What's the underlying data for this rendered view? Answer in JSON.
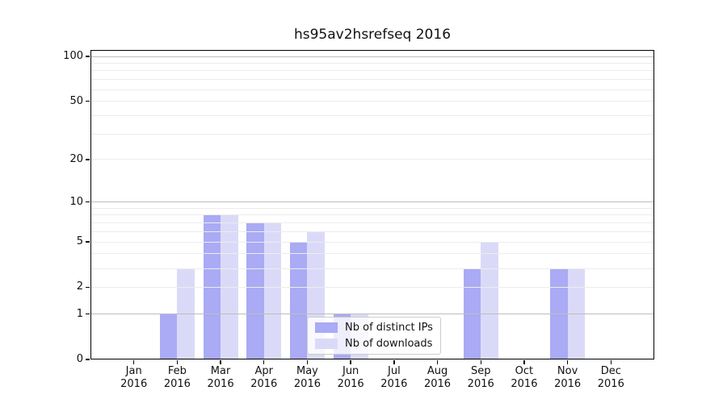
{
  "chart_data": {
    "type": "bar",
    "title": "hs95av2hsrefseq 2016",
    "x_categories": [
      "Jan",
      "Feb",
      "Mar",
      "Apr",
      "May",
      "Jun",
      "Jul",
      "Aug",
      "Sep",
      "Oct",
      "Nov",
      "Dec"
    ],
    "x_sublabel": "2016",
    "series": [
      {
        "name": "Nb of distinct IPs",
        "color": "#aaaaf5",
        "values": [
          0,
          1,
          8,
          7,
          5,
          1,
          0,
          0,
          3,
          0,
          3,
          0
        ]
      },
      {
        "name": "Nb of downloads",
        "color": "#dadaf8",
        "values": [
          0,
          3,
          8,
          7,
          6,
          1,
          0,
          0,
          5,
          0,
          3,
          0
        ]
      }
    ],
    "y_axis": {
      "scale": "log1p",
      "range": [
        0,
        100
      ],
      "tick_values": [
        0,
        1,
        2,
        5,
        10,
        20,
        50,
        100
      ]
    },
    "grid": {
      "major_values": [
        1,
        10,
        100
      ],
      "minor_values": [
        2,
        3,
        4,
        5,
        6,
        7,
        8,
        9,
        20,
        30,
        40,
        50,
        60,
        70,
        80,
        90
      ],
      "major_color": "#bdbdbd",
      "minor_color": "#ececec"
    },
    "legend": {
      "position": "lower center"
    },
    "axis_color": "#000000",
    "background_color": "#ffffff"
  }
}
